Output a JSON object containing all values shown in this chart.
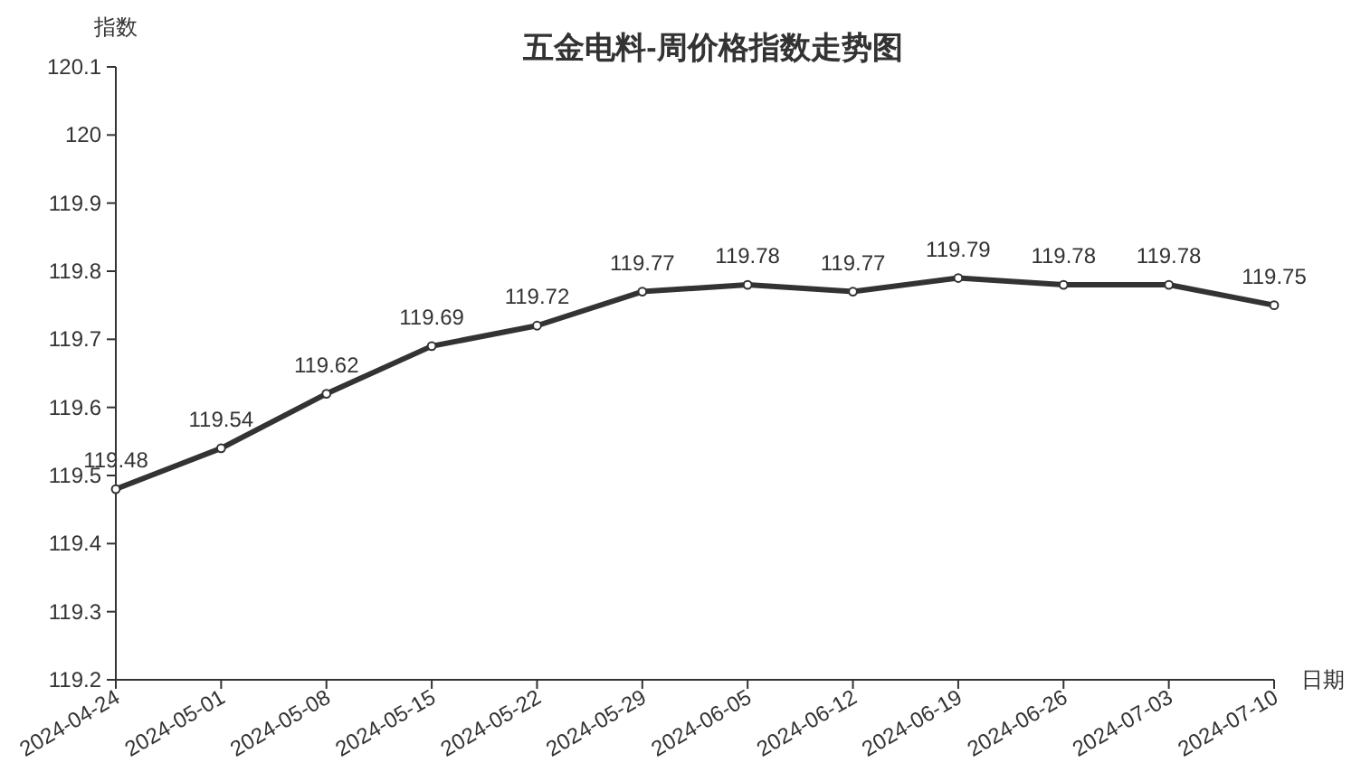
{
  "chart_data": {
    "type": "line",
    "title": "五金电料-周价格指数走势图",
    "xlabel": "日期",
    "ylabel": "指数",
    "categories": [
      "2024-04-24",
      "2024-05-01",
      "2024-05-08",
      "2024-05-15",
      "2024-05-22",
      "2024-05-29",
      "2024-06-05",
      "2024-06-12",
      "2024-06-19",
      "2024-06-26",
      "2024-07-03",
      "2024-07-10"
    ],
    "series": [
      {
        "color": "#333333",
        "values": [
          119.48,
          119.54,
          119.62,
          119.69,
          119.72,
          119.77,
          119.78,
          119.77,
          119.79,
          119.78,
          119.78,
          119.75
        ]
      }
    ],
    "ylim": [
      119.2,
      120.1
    ],
    "yticks": [
      119.2,
      119.3,
      119.4,
      119.5,
      119.6,
      119.7,
      119.8,
      119.9,
      120,
      120.1
    ],
    "data_labels": true,
    "marker": "circle",
    "line_style": "solid"
  }
}
